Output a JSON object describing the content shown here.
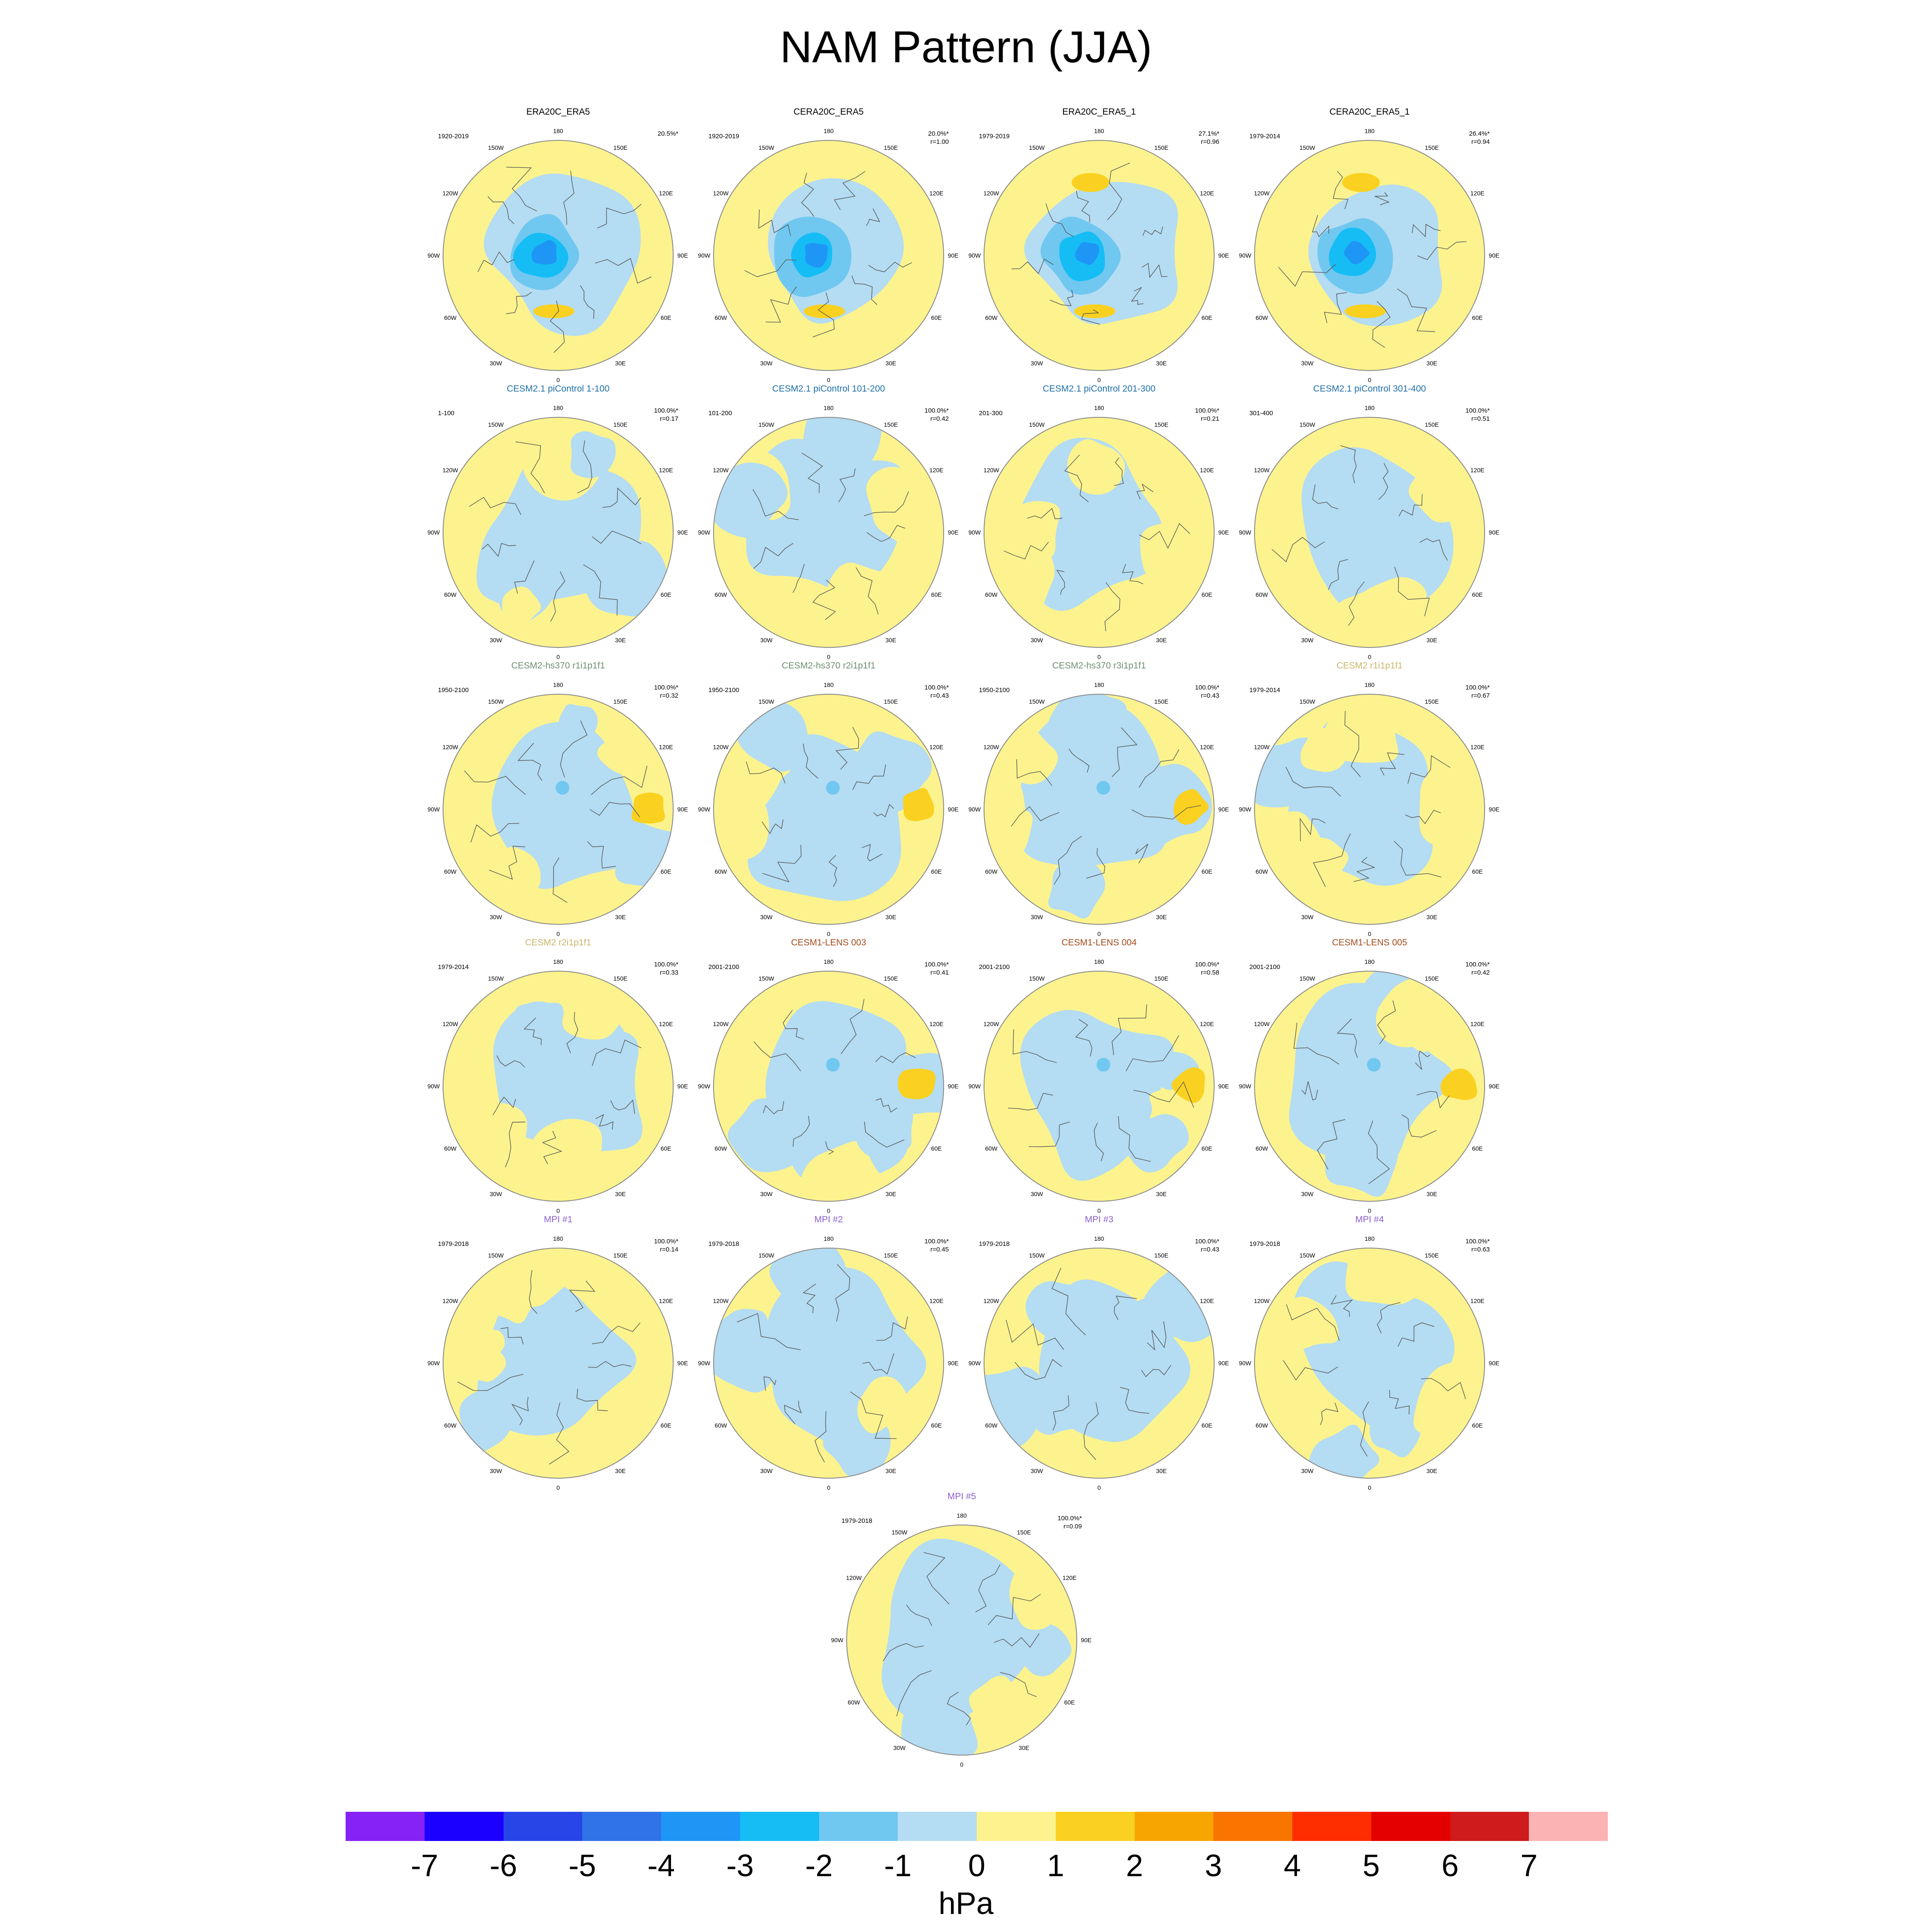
{
  "title": "NAM Pattern (JJA)",
  "units": "hPa",
  "colors": {
    "blue_light": "#b4dcf2",
    "blue_mid": "#70c8f0",
    "blue_cyan": "#16bdf5",
    "blue_deep": "#1e96f5",
    "yellow": "#fcf38e",
    "gold": "#fad120",
    "orange": "#f7a500",
    "coast": "#555555",
    "title_blue": "#1f6fa8",
    "title_green": "#6e8f72",
    "title_tan": "#c9b66b",
    "title_brown": "#a34b1b",
    "title_purple": "#8a5fd0"
  },
  "map_labels": {
    "top": "180",
    "bottom": "0",
    "left_top": "150W",
    "left_120": "120W",
    "left_90": "90W",
    "left_60": "60W",
    "left_30": "30W",
    "right_top": "150E",
    "right_120": "120E",
    "right_90": "90E",
    "right_60": "60E",
    "right_30": "30E"
  },
  "colorbar": {
    "colors": [
      "#8622f5",
      "#1c00ff",
      "#2846e8",
      "#3072e8",
      "#1e96f5",
      "#16bdf5",
      "#70c8f0",
      "#b4dcf2",
      "#fcf38e",
      "#fad120",
      "#f7a500",
      "#f97500",
      "#ff2e00",
      "#e50000",
      "#cf1b1b",
      "#fbb3b3"
    ],
    "labels": [
      "-7",
      "-6",
      "-5",
      "-4",
      "-3",
      "-2",
      "-1",
      "0",
      "1",
      "2",
      "3",
      "4",
      "5",
      "6",
      "7"
    ]
  },
  "panels": [
    {
      "title": "ERA20C_ERA5",
      "years": "1920-2019",
      "stat1": "20.5%*",
      "stat2": "",
      "color": "#000000",
      "scheme": "obs",
      "seed": 1
    },
    {
      "title": "CERA20C_ERA5",
      "years": "1920-2019",
      "stat1": "20.0%*",
      "stat2": "r=1.00",
      "color": "#000000",
      "scheme": "obs",
      "seed": 2
    },
    {
      "title": "ERA20C_ERA5_1",
      "years": "1979-2019",
      "stat1": "27.1%*",
      "stat2": "r=0.96",
      "color": "#000000",
      "scheme": "obs",
      "seed": 3
    },
    {
      "title": "CERA20C_ERA5_1",
      "years": "1979-2014",
      "stat1": "26.4%*",
      "stat2": "r=0.94",
      "color": "#000000",
      "scheme": "obs",
      "seed": 4
    },
    {
      "title": "CESM2.1 piControl 1-100",
      "years": "1-100",
      "stat1": "100.0%*",
      "stat2": "r=0.17",
      "color": "#1f6fa8",
      "scheme": "model",
      "seed": 5
    },
    {
      "title": "CESM2.1 piControl 101-200",
      "years": "101-200",
      "stat1": "100.0%*",
      "stat2": "r=0.42",
      "color": "#1f6fa8",
      "scheme": "model",
      "seed": 6
    },
    {
      "title": "CESM2.1 piControl 201-300",
      "years": "201-300",
      "stat1": "100.0%*",
      "stat2": "r=0.21",
      "color": "#1f6fa8",
      "scheme": "model",
      "seed": 7
    },
    {
      "title": "CESM2.1 piControl 301-400",
      "years": "301-400",
      "stat1": "100.0%*",
      "stat2": "r=0.51",
      "color": "#1f6fa8",
      "scheme": "model",
      "seed": 8
    },
    {
      "title": "CESM2-hs370 r1i1p1f1",
      "years": "1950-2100",
      "stat1": "100.0%*",
      "stat2": "r=0.32",
      "color": "#6e8f72",
      "scheme": "future",
      "seed": 9
    },
    {
      "title": "CESM2-hs370 r2i1p1f1",
      "years": "1950-2100",
      "stat1": "100.0%*",
      "stat2": "r=0.43",
      "color": "#6e8f72",
      "scheme": "future",
      "seed": 10
    },
    {
      "title": "CESM2-hs370 r3i1p1f1",
      "years": "1950-2100",
      "stat1": "100.0%*",
      "stat2": "r=0.43",
      "color": "#6e8f72",
      "scheme": "future",
      "seed": 11
    },
    {
      "title": "CESM2 r1i1p1f1",
      "years": "1979-2014",
      "stat1": "100.0%*",
      "stat2": "r=0.67",
      "color": "#c9b66b",
      "scheme": "model",
      "seed": 12
    },
    {
      "title": "CESM2 r2i1p1f1",
      "years": "1979-2014",
      "stat1": "100.0%*",
      "stat2": "r=0.33",
      "color": "#c9b66b",
      "scheme": "model",
      "seed": 13
    },
    {
      "title": "CESM1-LENS 003",
      "years": "2001-2100",
      "stat1": "100.0%*",
      "stat2": "r=0.41",
      "color": "#a34b1b",
      "scheme": "future",
      "seed": 14
    },
    {
      "title": "CESM1-LENS 004",
      "years": "2001-2100",
      "stat1": "100.0%*",
      "stat2": "r=0.58",
      "color": "#a34b1b",
      "scheme": "future",
      "seed": 15
    },
    {
      "title": "CESM1-LENS 005",
      "years": "2001-2100",
      "stat1": "100.0%*",
      "stat2": "r=0.42",
      "color": "#a34b1b",
      "scheme": "future",
      "seed": 16
    },
    {
      "title": "MPI #1",
      "years": "1979-2018",
      "stat1": "100.0%*",
      "stat2": "r=0.14",
      "color": "#8a5fd0",
      "scheme": "model",
      "seed": 17
    },
    {
      "title": "MPI #2",
      "years": "1979-2018",
      "stat1": "100.0%*",
      "stat2": "r=0.45",
      "color": "#8a5fd0",
      "scheme": "model",
      "seed": 18
    },
    {
      "title": "MPI #3",
      "years": "1979-2018",
      "stat1": "100.0%*",
      "stat2": "r=0.43",
      "color": "#8a5fd0",
      "scheme": "model",
      "seed": 19
    },
    {
      "title": "MPI #4",
      "years": "1979-2018",
      "stat1": "100.0%*",
      "stat2": "r=0.63",
      "color": "#8a5fd0",
      "scheme": "model",
      "seed": 20
    },
    {
      "title": "MPI #5",
      "years": "1979-2018",
      "stat1": "100.0%*",
      "stat2": "r=0.09",
      "color": "#8a5fd0",
      "scheme": "model",
      "seed": 21
    }
  ]
}
